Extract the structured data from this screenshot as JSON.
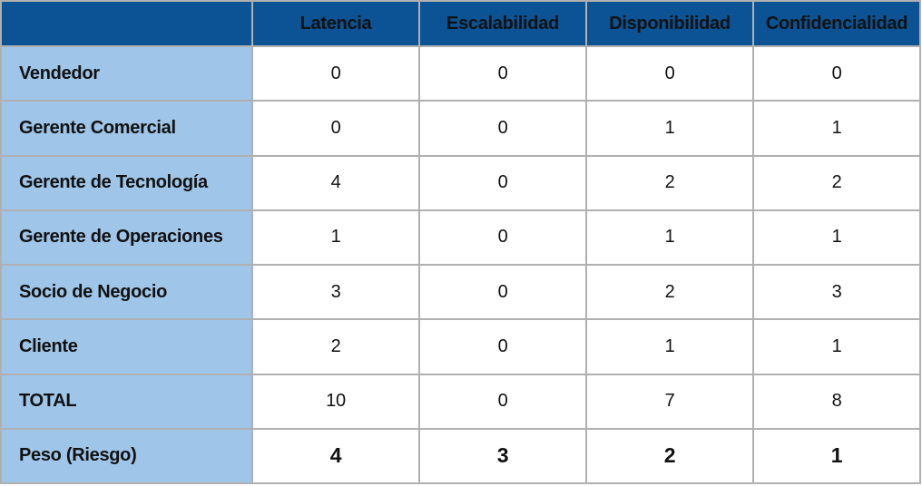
{
  "colors": {
    "header_bg": "#0b5394",
    "header_text": "#ffffff",
    "label_bg": "#9fc5e8",
    "cell_bg": "#ffffff",
    "border": "#b0b0b0",
    "text": "#111111"
  },
  "table": {
    "columns": [
      "",
      "Latencia",
      "Escalabilidad",
      "Disponibilidad",
      "Confidencialidad"
    ],
    "rows": [
      {
        "label": "Vendedor",
        "values": [
          "0",
          "0",
          "0",
          "0"
        ],
        "emphasis": false
      },
      {
        "label": "Gerente Comercial",
        "values": [
          "0",
          "0",
          "1",
          "1"
        ],
        "emphasis": false
      },
      {
        "label": "Gerente de Tecnología",
        "values": [
          "4",
          "0",
          "2",
          "2"
        ],
        "emphasis": false
      },
      {
        "label": "Gerente de Operaciones",
        "values": [
          "1",
          "0",
          "1",
          "1"
        ],
        "emphasis": false
      },
      {
        "label": "Socio de Negocio",
        "values": [
          "3",
          "0",
          "2",
          "3"
        ],
        "emphasis": false
      },
      {
        "label": "Cliente",
        "values": [
          "2",
          "0",
          "1",
          "1"
        ],
        "emphasis": false
      },
      {
        "label": "TOTAL",
        "values": [
          "10",
          "0",
          "7",
          "8"
        ],
        "emphasis": false
      },
      {
        "label": "Peso (Riesgo)",
        "values": [
          "4",
          "3",
          "2",
          "1"
        ],
        "emphasis": true
      }
    ]
  }
}
